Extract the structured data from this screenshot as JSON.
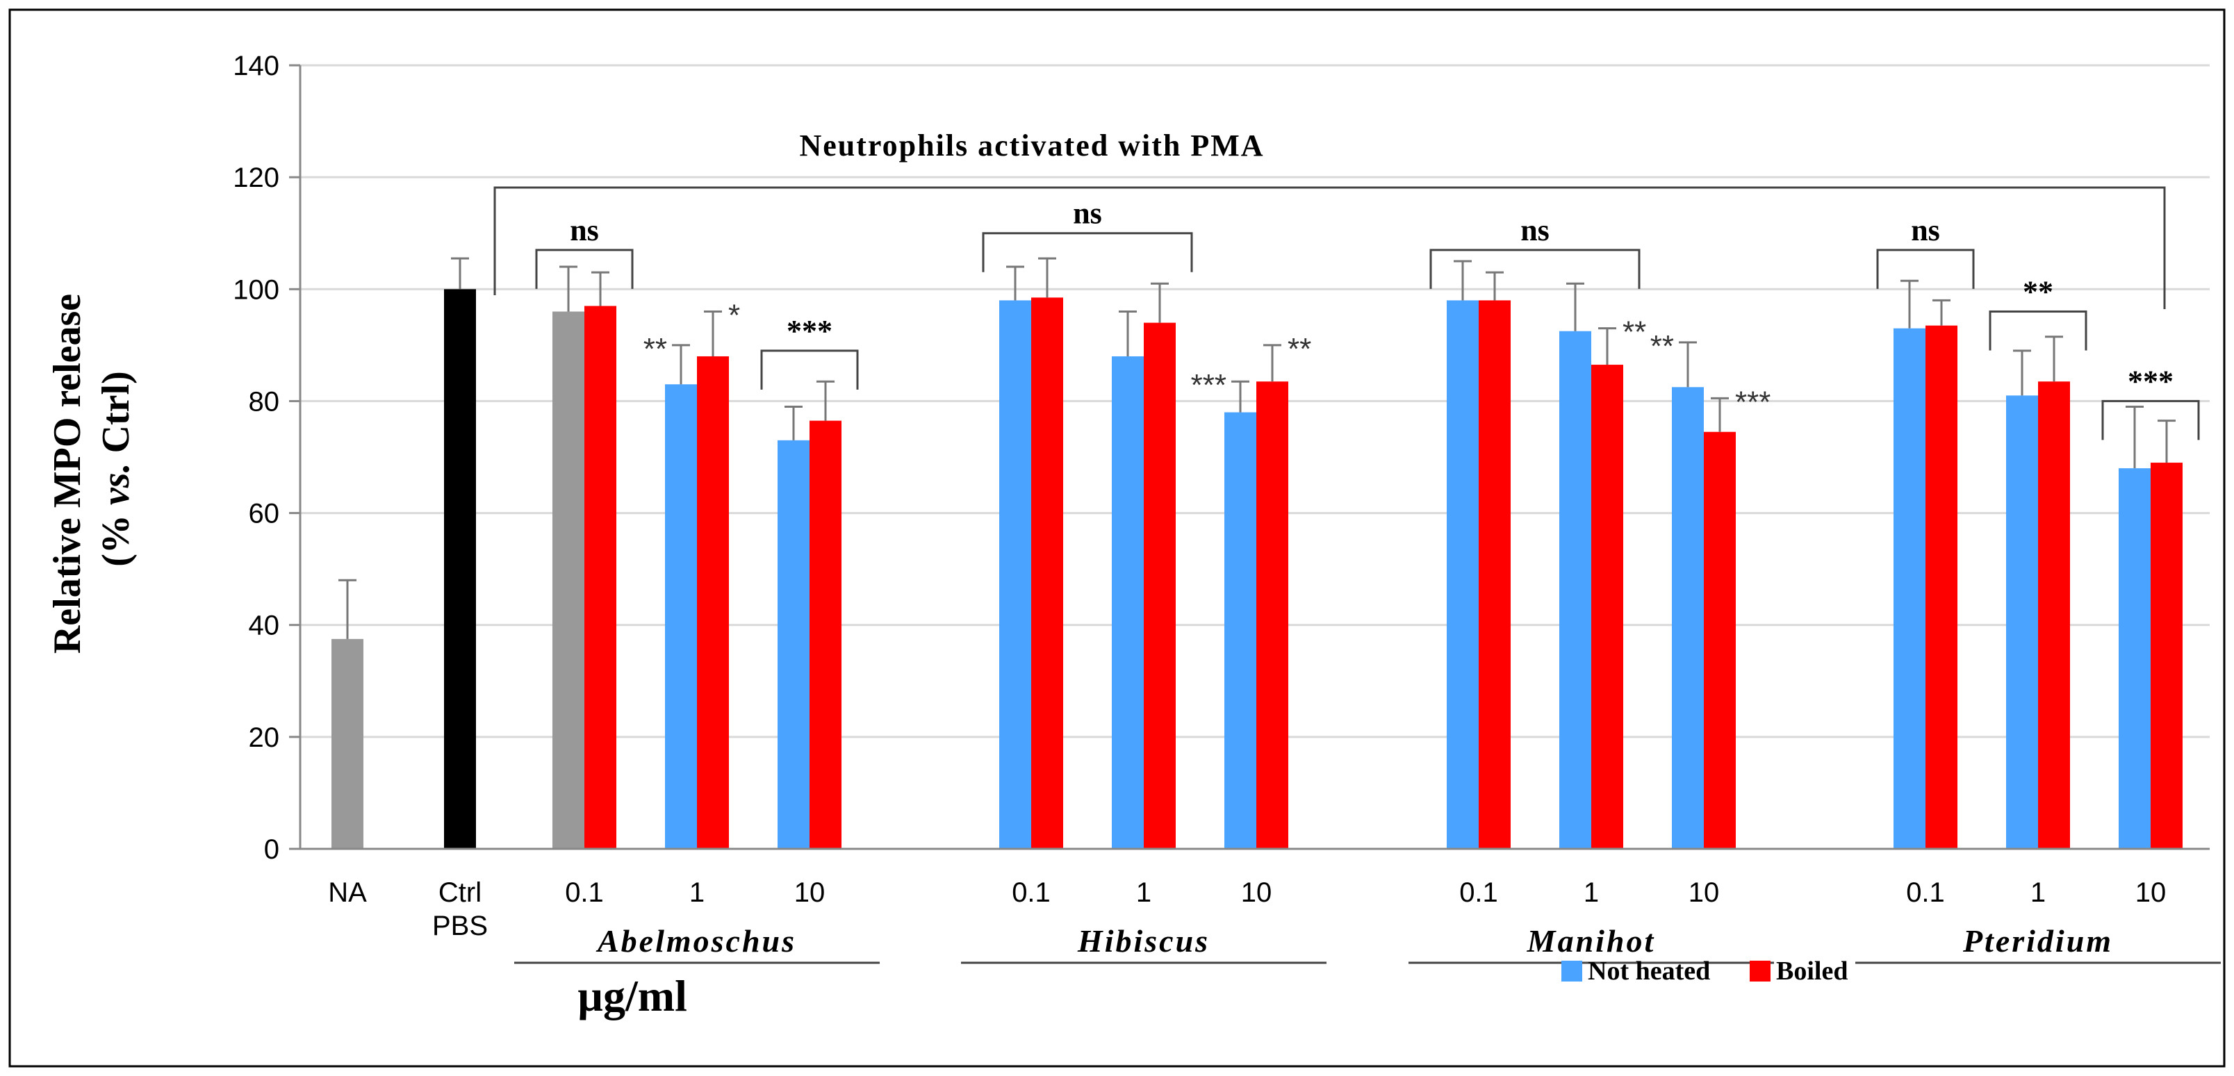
{
  "chart_data": {
    "type": "bar",
    "ylabel_line1": "Relative MPO release",
    "ylabel_line2_pre": "(% ",
    "ylabel_line2_ital": "vs.",
    "ylabel_line2_post": " Ctrl)",
    "ylim": [
      0,
      140
    ],
    "yticks": [
      0,
      20,
      40,
      60,
      80,
      100,
      120,
      140
    ],
    "grid": true,
    "annotation_main": "Neutrophils activated with PMA",
    "unit_label": "µg/ml",
    "legend": {
      "position": "bottom-right",
      "items": [
        {
          "name": "Not heated",
          "color": "#4aa3ff"
        },
        {
          "name": "Boiled",
          "color": "#ff0000"
        }
      ]
    },
    "colors": {
      "gray": "#999999",
      "black": "#000000",
      "blue": "#4aa3ff",
      "red": "#ff0000"
    },
    "controls": [
      {
        "label": "NA",
        "value": 37.5,
        "error": 10.5,
        "color": "gray"
      },
      {
        "label": "Ctrl",
        "label2": "PBS",
        "value": 100,
        "error": 5.5,
        "color": "black"
      }
    ],
    "groups": [
      {
        "name": "Abelmoschus",
        "ns_label": "ns",
        "points": [
          {
            "dose": "0.1",
            "not_heated": 96,
            "not_heated_err": 8,
            "boiled": 97,
            "boiled_err": 6,
            "not_heated_color": "gray",
            "sig_nh": "",
            "sig_b": ""
          },
          {
            "dose": "1",
            "not_heated": 83,
            "not_heated_err": 7,
            "boiled": 88,
            "boiled_err": 8,
            "sig_nh": "**",
            "sig_b": "*"
          },
          {
            "dose": "10",
            "not_heated": 73,
            "not_heated_err": 6,
            "boiled": 76.5,
            "boiled_err": 7,
            "sig_nh": "",
            "sig_b": ""
          }
        ],
        "brackets": [
          {
            "label": "ns",
            "from": 0,
            "to": 0,
            "level": 107
          },
          {
            "label": "***",
            "from": 2,
            "to": 2,
            "level": 89
          }
        ]
      },
      {
        "name": "Hibiscus",
        "ns_label": "ns",
        "points": [
          {
            "dose": "0.1",
            "not_heated": 98,
            "not_heated_err": 6,
            "boiled": 98.5,
            "boiled_err": 7,
            "sig_nh": "",
            "sig_b": ""
          },
          {
            "dose": "1",
            "not_heated": 88,
            "not_heated_err": 8,
            "boiled": 94,
            "boiled_err": 7,
            "sig_nh": "",
            "sig_b": ""
          },
          {
            "dose": "10",
            "not_heated": 78,
            "not_heated_err": 5.5,
            "boiled": 83.5,
            "boiled_err": 6.5,
            "sig_nh": "***",
            "sig_b": "**"
          }
        ],
        "brackets": [
          {
            "label": "ns",
            "from": 0,
            "to": 1,
            "level": 110
          }
        ]
      },
      {
        "name": "Manihot",
        "ns_label": "ns",
        "points": [
          {
            "dose": "0.1",
            "not_heated": 98,
            "not_heated_err": 7,
            "boiled": 98,
            "boiled_err": 5,
            "sig_nh": "",
            "sig_b": ""
          },
          {
            "dose": "1",
            "not_heated": 92.5,
            "not_heated_err": 8.5,
            "boiled": 86.5,
            "boiled_err": 6.5,
            "sig_nh": "",
            "sig_b": "**"
          },
          {
            "dose": "10",
            "not_heated": 82.5,
            "not_heated_err": 8,
            "boiled": 74.5,
            "boiled_err": 6,
            "sig_nh": "**",
            "sig_b": "***"
          }
        ],
        "brackets": [
          {
            "label": "ns",
            "from": 0,
            "to": 1,
            "level": 107
          }
        ]
      },
      {
        "name": "Pteridium",
        "ns_label": "ns",
        "points": [
          {
            "dose": "0.1",
            "not_heated": 93,
            "not_heated_err": 8.5,
            "boiled": 93.5,
            "boiled_err": 4.5,
            "sig_nh": "",
            "sig_b": ""
          },
          {
            "dose": "1",
            "not_heated": 81,
            "not_heated_err": 8,
            "boiled": 83.5,
            "boiled_err": 8,
            "sig_nh": "",
            "sig_b": ""
          },
          {
            "dose": "10",
            "not_heated": 68,
            "not_heated_err": 11,
            "boiled": 69,
            "boiled_err": 7.5,
            "sig_nh": "",
            "sig_b": ""
          }
        ],
        "brackets": [
          {
            "label": "ns",
            "from": 0,
            "to": 0,
            "level": 107
          },
          {
            "label": "**",
            "from": 1,
            "to": 1,
            "level": 96
          },
          {
            "label": "***",
            "from": 2,
            "to": 2,
            "level": 80
          }
        ]
      }
    ]
  }
}
